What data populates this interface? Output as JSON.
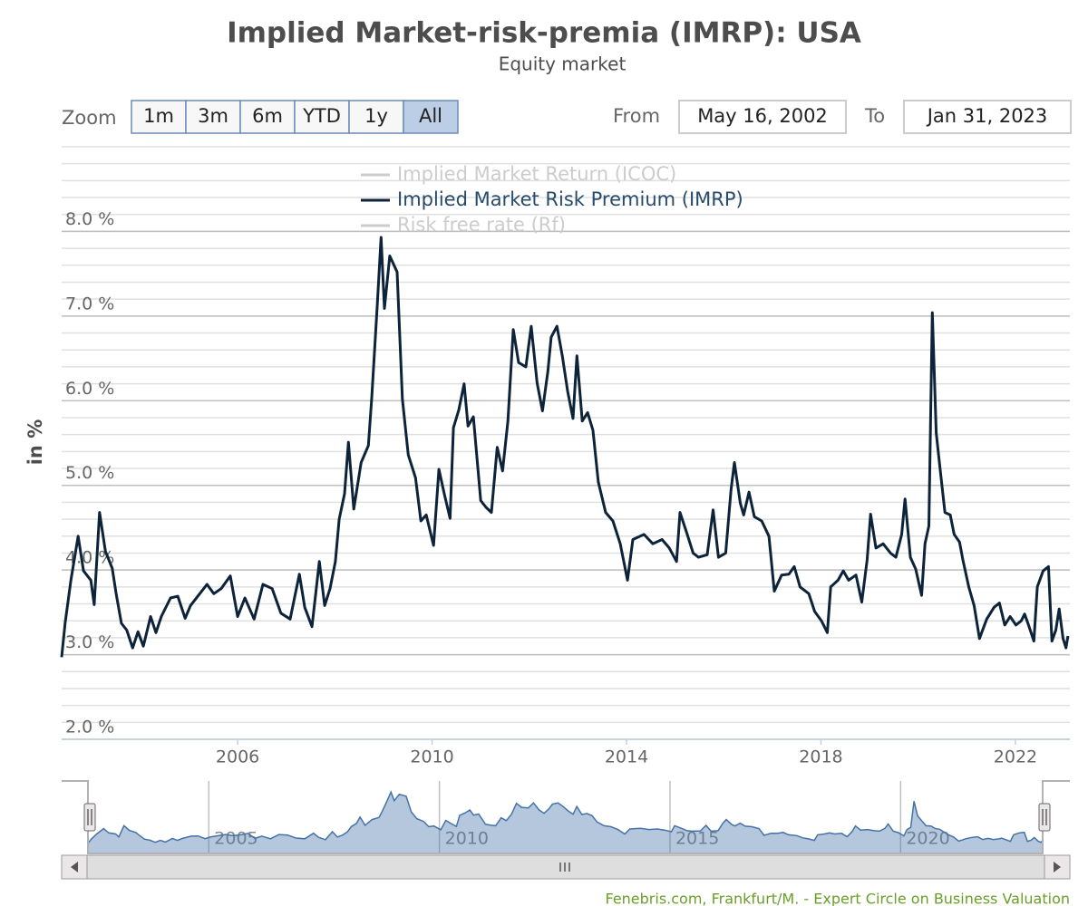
{
  "chart_data": {
    "type": "line",
    "title": "Implied Market-risk-premia (IMRP): USA",
    "subtitle": "Equity market",
    "y_label": "in %",
    "range_selector": {
      "label": "Zoom",
      "buttons": [
        "1m",
        "3m",
        "6m",
        "YTD",
        "1y",
        "All"
      ],
      "selected": 5,
      "from_label": "From",
      "from": "May 16, 2002",
      "to_label": "To",
      "to": "Jan 31, 2023"
    },
    "credits": "Fenebris.com, Frankfurt/M. - Expert Circle on Business Valuation",
    "grid": true,
    "minor_tick_interval": 0.2,
    "xlim": [
      2002.38,
      2023.12
    ],
    "xticks": [
      2006,
      2010,
      2014,
      2018,
      2022
    ],
    "ylim": [
      2,
      9
    ],
    "yticks": [
      {
        "value": 2,
        "label": "2.0 %"
      },
      {
        "value": 3,
        "label": "3.0 %"
      },
      {
        "value": 4,
        "label": "4.0 %"
      },
      {
        "value": 5,
        "label": "5.0 %"
      },
      {
        "value": 6,
        "label": "6.0 %"
      },
      {
        "value": 7,
        "label": "7.0 %"
      },
      {
        "value": 8,
        "label": "8.0 %"
      }
    ],
    "navigator": {
      "xlim": [
        2002.38,
        2023.08
      ],
      "xticks": [
        2005,
        2010,
        2015,
        2020
      ],
      "ylim": [
        2,
        9
      ],
      "color": "#4572a7"
    },
    "x": [
      2002.38,
      2002.45,
      2002.57,
      2002.72,
      2002.83,
      2002.98,
      2003.05,
      2003.16,
      2003.28,
      2003.42,
      2003.5,
      2003.61,
      2003.72,
      2003.84,
      2003.95,
      2004.06,
      2004.21,
      2004.32,
      2004.43,
      2004.62,
      2004.77,
      2004.92,
      2005.03,
      2005.22,
      2005.37,
      2005.51,
      2005.66,
      2005.85,
      2006.0,
      2006.15,
      2006.34,
      2006.52,
      2006.71,
      2006.89,
      2007.08,
      2007.27,
      2007.38,
      2007.53,
      2007.68,
      2007.79,
      2007.9,
      2008.01,
      2008.09,
      2008.2,
      2008.28,
      2008.39,
      2008.54,
      2008.69,
      2008.76,
      2008.87,
      2008.95,
      2009.02,
      2009.13,
      2009.28,
      2009.39,
      2009.51,
      2009.66,
      2009.77,
      2009.88,
      2010.03,
      2010.14,
      2010.25,
      2010.37,
      2010.44,
      2010.55,
      2010.66,
      2010.74,
      2010.85,
      2011.0,
      2011.11,
      2011.22,
      2011.34,
      2011.45,
      2011.56,
      2011.67,
      2011.78,
      2011.93,
      2012.04,
      2012.16,
      2012.27,
      2012.38,
      2012.45,
      2012.57,
      2012.68,
      2012.79,
      2012.9,
      2012.98,
      2013.09,
      2013.2,
      2013.31,
      2013.42,
      2013.57,
      2013.72,
      2013.87,
      2014.02,
      2014.13,
      2014.36,
      2014.54,
      2014.73,
      2014.88,
      2015.03,
      2015.1,
      2015.25,
      2015.37,
      2015.48,
      2015.66,
      2015.78,
      2015.89,
      2016.04,
      2016.15,
      2016.22,
      2016.34,
      2016.41,
      2016.52,
      2016.63,
      2016.78,
      2016.93,
      2017.04,
      2017.19,
      2017.34,
      2017.45,
      2017.57,
      2017.75,
      2017.87,
      2018.01,
      2018.13,
      2018.2,
      2018.35,
      2018.46,
      2018.57,
      2018.72,
      2018.84,
      2018.95,
      2019.02,
      2019.13,
      2019.28,
      2019.43,
      2019.54,
      2019.66,
      2019.73,
      2019.84,
      2019.95,
      2020.07,
      2020.14,
      2020.22,
      2020.29,
      2020.37,
      2020.44,
      2020.55,
      2020.66,
      2020.74,
      2020.85,
      2020.92,
      2021.04,
      2021.15,
      2021.26,
      2021.41,
      2021.56,
      2021.67,
      2021.78,
      2021.89,
      2022.01,
      2022.12,
      2022.19,
      2022.27,
      2022.38,
      2022.45,
      2022.57,
      2022.68,
      2022.75,
      2022.83,
      2022.9,
      2022.98,
      2023.04,
      2023.08
    ],
    "series": [
      {
        "name": "Implied Market Return (ICOC)",
        "color": "#cccccc",
        "visible": false
      },
      {
        "name": "Implied Market Risk Premium (IMRP)",
        "color": "#0d233a",
        "visible": true,
        "values": [
          2.97,
          3.37,
          3.88,
          4.4,
          3.99,
          3.88,
          3.59,
          4.68,
          4.22,
          4.02,
          3.72,
          3.37,
          3.29,
          3.08,
          3.27,
          3.1,
          3.45,
          3.26,
          3.45,
          3.67,
          3.69,
          3.43,
          3.58,
          3.72,
          3.83,
          3.72,
          3.78,
          3.93,
          3.45,
          3.67,
          3.42,
          3.83,
          3.78,
          3.49,
          3.42,
          3.95,
          3.56,
          3.33,
          4.1,
          3.58,
          3.78,
          4.1,
          4.6,
          4.9,
          5.51,
          4.72,
          5.27,
          5.47,
          6.05,
          7.11,
          7.93,
          7.09,
          7.71,
          7.52,
          6.02,
          5.36,
          5.09,
          4.58,
          4.65,
          4.29,
          5.19,
          4.9,
          4.61,
          5.68,
          5.89,
          6.2,
          5.7,
          5.81,
          4.82,
          4.74,
          4.68,
          5.45,
          5.17,
          5.76,
          6.84,
          6.45,
          6.4,
          6.88,
          6.21,
          5.88,
          6.34,
          6.75,
          6.88,
          6.53,
          6.11,
          5.79,
          6.53,
          5.76,
          5.86,
          5.65,
          5.04,
          4.68,
          4.58,
          4.31,
          3.88,
          4.36,
          4.42,
          4.31,
          4.36,
          4.26,
          4.1,
          4.68,
          4.42,
          4.2,
          4.15,
          4.18,
          4.71,
          4.15,
          4.2,
          4.95,
          5.27,
          4.79,
          4.65,
          4.92,
          4.63,
          4.58,
          4.4,
          3.75,
          3.94,
          3.95,
          4.04,
          3.8,
          3.72,
          3.51,
          3.4,
          3.26,
          3.8,
          3.88,
          3.99,
          3.88,
          3.94,
          3.62,
          4.12,
          4.66,
          4.26,
          4.31,
          4.2,
          4.15,
          4.42,
          4.84,
          4.15,
          4.01,
          3.7,
          4.31,
          4.52,
          7.04,
          5.62,
          5.25,
          4.68,
          4.65,
          4.42,
          4.33,
          4.12,
          3.8,
          3.58,
          3.19,
          3.42,
          3.56,
          3.61,
          3.35,
          3.45,
          3.35,
          3.4,
          3.48,
          3.35,
          3.16,
          3.8,
          3.99,
          4.04,
          3.16,
          3.29,
          3.54,
          3.19,
          3.08,
          3.22
        ]
      },
      {
        "name": "Risk free rate (Rf)",
        "color": "#cccccc",
        "visible": false
      }
    ]
  }
}
